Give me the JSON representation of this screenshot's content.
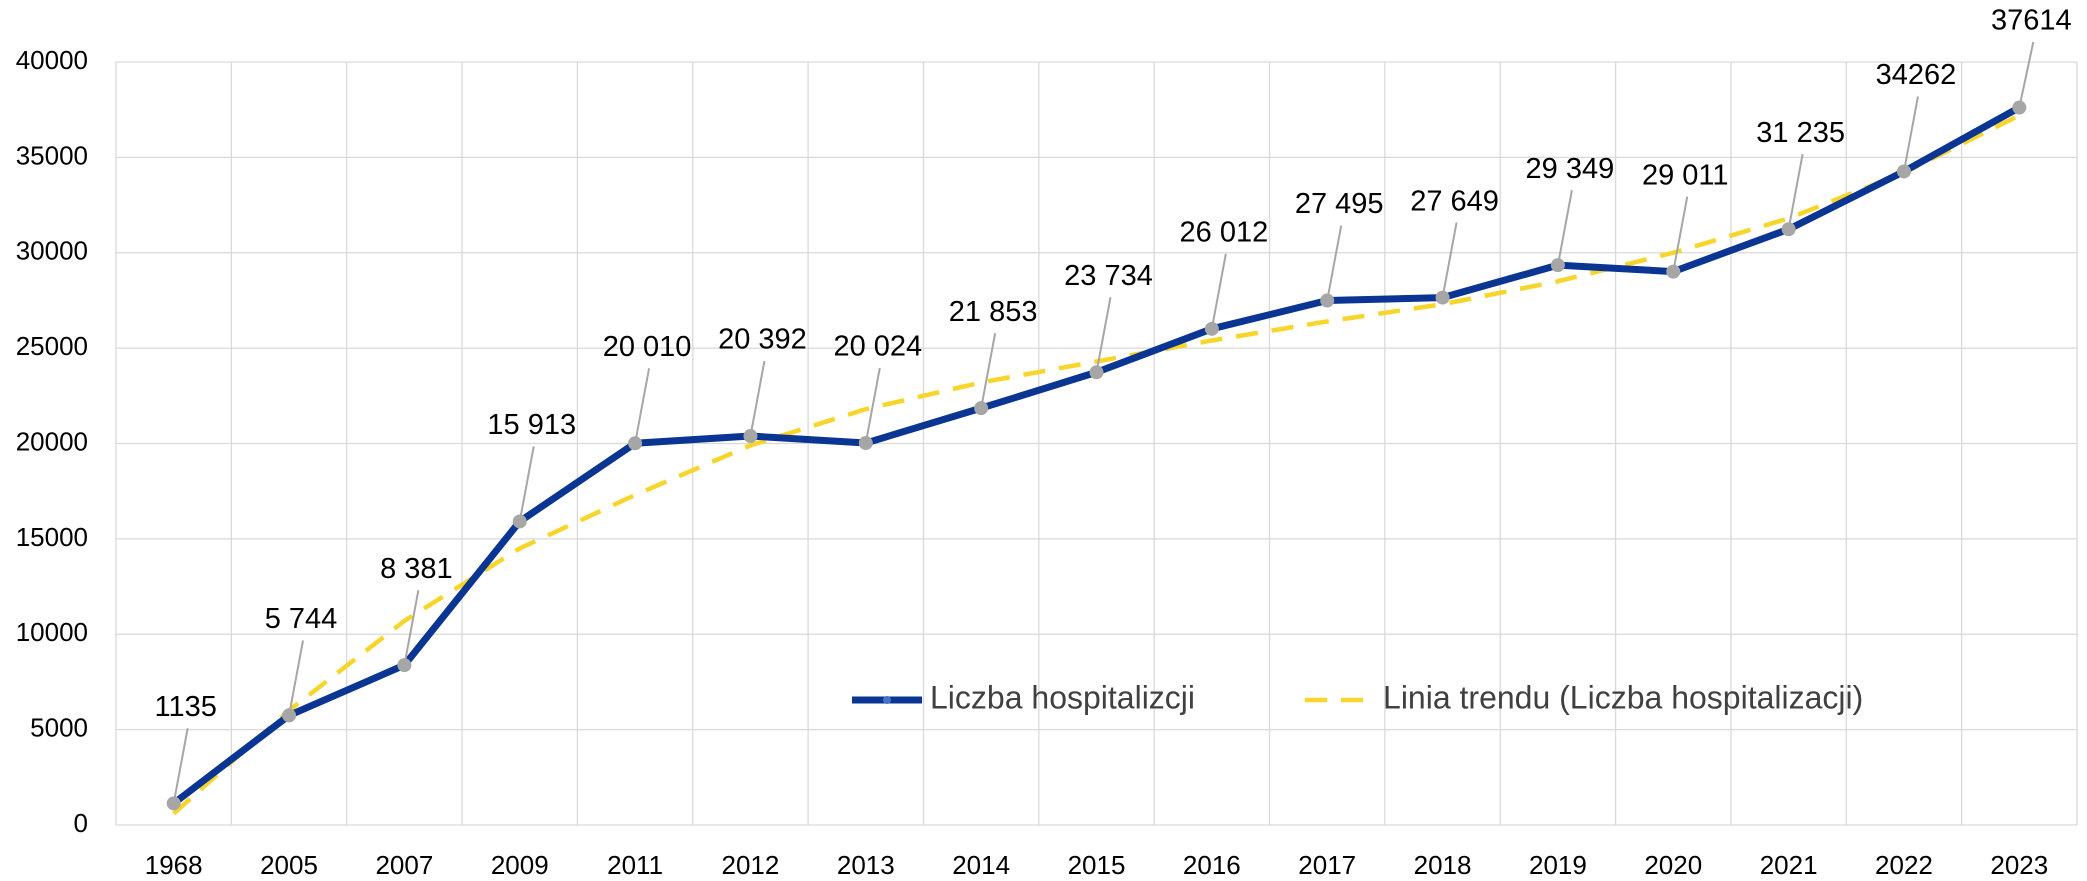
{
  "chart_data": {
    "type": "line",
    "categories": [
      "1968",
      "2005",
      "2007",
      "2009",
      "2011",
      "2012",
      "2013",
      "2014",
      "2015",
      "2016",
      "2017",
      "2018",
      "2019",
      "2020",
      "2021",
      "2022",
      "2023"
    ],
    "series": [
      {
        "name": "Liczba hospitalizcji",
        "color": "#0a3593",
        "marker_color": "#a6a6a6",
        "values": [
          1135,
          5744,
          8381,
          15913,
          20010,
          20392,
          20024,
          21853,
          23734,
          26012,
          27495,
          27649,
          29349,
          29011,
          31235,
          34262,
          37614
        ],
        "value_labels": [
          "1135",
          "5 744",
          "8 381",
          "15 913",
          "20 010",
          "20 392",
          "20 024",
          "21 853",
          "23 734",
          "26 012",
          "27 495",
          "27 649",
          "29 349",
          "29 011",
          "31 235",
          "34262",
          "37614"
        ]
      },
      {
        "name": "Linia trendu (Liczba hospitalizacji)",
        "color": "#f7d52a",
        "dashed": true,
        "values": [
          600,
          6000,
          10700,
          14500,
          17300,
          19900,
          21800,
          23200,
          24300,
          25400,
          26400,
          27300,
          28500,
          30000,
          31800,
          34200,
          37200
        ]
      }
    ],
    "ylim": [
      0,
      40000
    ],
    "yticks": [
      0,
      5000,
      10000,
      15000,
      20000,
      25000,
      30000,
      35000,
      40000
    ],
    "grid": true,
    "legend": "lower right"
  }
}
